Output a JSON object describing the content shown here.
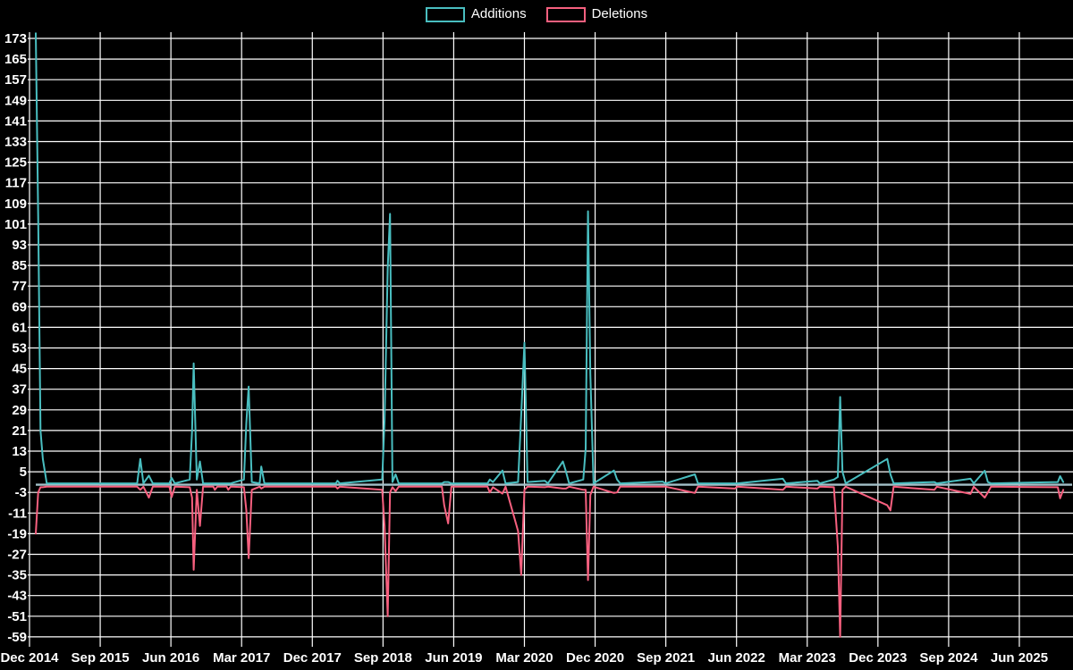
{
  "chart_data": {
    "type": "line",
    "title": "",
    "legend_position": "top-center",
    "background_color": "#000000",
    "grid_color": "#ffffff",
    "text_color": "#ffffff",
    "zero_line_color": "#a4c1c9",
    "grid": true,
    "ylim": [
      -63,
      176
    ],
    "y_ticks": [
      173,
      165,
      157,
      149,
      141,
      133,
      125,
      117,
      109,
      101,
      93,
      85,
      77,
      69,
      61,
      53,
      45,
      37,
      29,
      21,
      13,
      5,
      -3,
      -11,
      -19,
      -27,
      -35,
      -43,
      -51,
      -59
    ],
    "x_tick_labels": [
      "Dec 2014",
      "Sep 2015",
      "Jun 2016",
      "Mar 2017",
      "Dec 2017",
      "Sep 2018",
      "Jun 2019",
      "Mar 2020",
      "Dec 2020",
      "Sep 2021",
      "Jun 2022",
      "Mar 2023",
      "Dec 2023",
      "Sep 2024",
      "Jun 2025"
    ],
    "x_tick_interval_months": 9,
    "x_unit": "months after Dec 2014",
    "x_months": [
      0.8,
      1.1,
      1.4,
      1.7,
      2.2,
      13.7,
      14.1,
      14.5,
      15.2,
      15.7,
      17.8,
      18.1,
      18.5,
      20.4,
      20.7,
      20.9,
      21.3,
      21.7,
      22.1,
      23.4,
      23.6,
      23.9,
      25.1,
      25.3,
      25.6,
      27.3,
      27.6,
      27.9,
      28.3,
      29.3,
      29.5,
      29.9,
      39.0,
      39.2,
      39.5,
      44.9,
      45.2,
      45.6,
      45.9,
      46.2,
      46.6,
      47.0,
      52.5,
      52.8,
      53.3,
      53.7,
      58.3,
      58.6,
      59.0,
      60.2,
      60.6,
      62.2,
      62.6,
      63.0,
      63.4,
      65.6,
      66.0,
      67.9,
      68.3,
      68.7,
      70.5,
      70.8,
      71.1,
      71.4,
      71.8,
      74.4,
      74.8,
      75.2,
      80.6,
      81.0,
      84.7,
      85.1,
      89.8,
      90.1,
      95.9,
      96.3,
      100.3,
      100.6,
      102.4,
      102.9,
      103.2,
      103.5,
      103.9,
      109.2,
      109.6,
      110.0,
      115.2,
      115.5,
      119.8,
      120.2,
      121.6,
      122.0,
      122.4,
      130.9,
      131.2,
      131.6
    ],
    "series": [
      {
        "name": "Additions",
        "color": "#49bec0",
        "values": [
          175,
          104,
          21,
          10,
          0.5,
          0.5,
          10,
          0.5,
          3.5,
          0.5,
          0.5,
          2.6,
          0.5,
          2,
          21,
          47,
          2,
          9,
          0.5,
          0.5,
          0.5,
          0.5,
          0.5,
          0.5,
          0.5,
          2,
          24,
          38,
          1,
          0.5,
          7,
          0.5,
          0.5,
          1.5,
          0.5,
          2,
          25,
          84,
          105,
          1,
          4,
          0.5,
          0.5,
          1,
          1,
          0.5,
          0.5,
          2,
          1,
          5.5,
          0.5,
          1,
          27,
          55,
          1,
          1.5,
          0.5,
          9,
          5,
          0.5,
          2,
          14,
          106,
          43,
          0.5,
          5.5,
          2,
          0.5,
          1.2,
          0.5,
          4,
          0.5,
          0.5,
          0.5,
          2.3,
          0.5,
          1.5,
          0.5,
          2,
          3,
          34,
          5,
          0.5,
          10,
          4,
          0.5,
          1,
          0.5,
          2.3,
          0.5,
          5.4,
          1,
          0.5,
          1,
          3.3,
          1
        ]
      },
      {
        "name": "Deletions",
        "color": "#f7607f",
        "values": [
          -19,
          -3,
          -1,
          -1,
          -0.8,
          -0.8,
          -2,
          -0.8,
          -5,
          -0.8,
          -0.8,
          -4.8,
          -0.8,
          -1,
          -5,
          -33,
          -2,
          -16,
          -0.8,
          -0.8,
          -2,
          -0.8,
          -0.8,
          -2,
          -0.8,
          -1,
          -10,
          -28.5,
          -2,
          -0.8,
          -1.5,
          -0.8,
          -0.8,
          -1.5,
          -0.8,
          -2,
          -16,
          -51,
          -3,
          -1,
          -2.5,
          -0.8,
          -0.8,
          -8,
          -15,
          -0.8,
          -0.8,
          -3,
          -1,
          -3.5,
          -0.8,
          -18,
          -35,
          -2,
          -0.8,
          -1,
          -0.8,
          -1.5,
          -1.5,
          -0.8,
          -2,
          -2,
          -37,
          -4,
          -0.8,
          -3.2,
          -3,
          -0.8,
          -0.8,
          -0.8,
          -3.2,
          -0.8,
          -1.5,
          -0.8,
          -2,
          -0.8,
          -1.5,
          -0.8,
          -1,
          -24,
          -59,
          -2,
          -0.8,
          -8,
          -10,
          -0.8,
          -2,
          -0.8,
          -3.6,
          -0.8,
          -5,
          -3,
          -0.8,
          -1,
          -5.3,
          -2
        ]
      }
    ]
  }
}
